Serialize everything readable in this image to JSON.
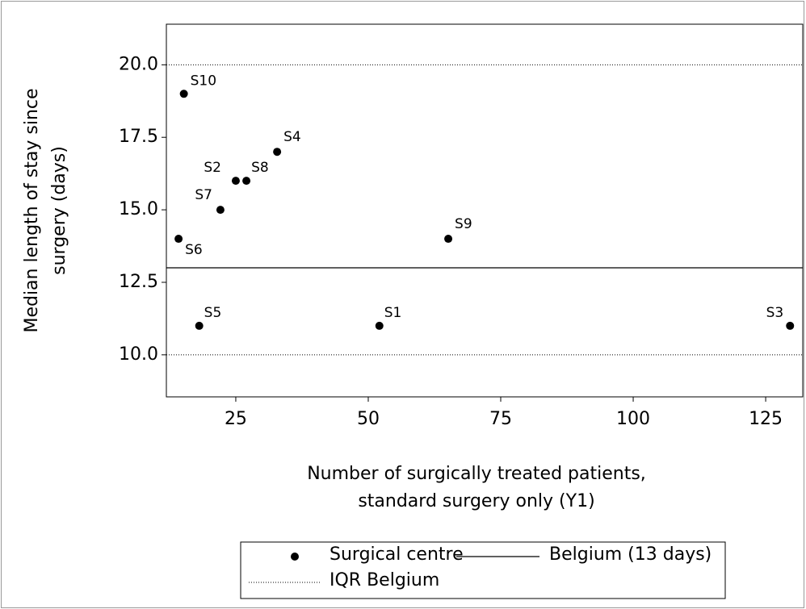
{
  "chart_data": {
    "type": "scatter",
    "xlabel": [
      "Number of surgically treated patients,",
      "standard surgery only (Y1)"
    ],
    "ylabel": [
      "Median length of stay since",
      "surgery (days)"
    ],
    "series": [
      {
        "name": "Surgical centre",
        "color": "#000000",
        "labels": [
          "S6",
          "S10",
          "S5",
          "S7",
          "S2",
          "S8",
          "S4",
          "S1",
          "S9",
          "S3"
        ],
        "x": [
          14.2,
          15.2,
          18.1,
          22.1,
          25,
          27,
          32.8,
          52.1,
          65.1,
          129.6
        ],
        "values": [
          14,
          19,
          11,
          15,
          16,
          16,
          17,
          11,
          14,
          11
        ]
      }
    ],
    "reference_lines": [
      {
        "name": "Belgium (13 days)",
        "values": [
          13
        ],
        "style": "solid"
      },
      {
        "name": "IQR Belgium",
        "values": [
          10,
          20
        ],
        "style": "dotted"
      }
    ],
    "xlim": [
      11.9,
      132
    ],
    "xticks": [
      25,
      50,
      75,
      100,
      125
    ],
    "ylim": [
      8.55,
      21.4
    ],
    "yticks": [
      {
        "value": 10,
        "label": "10.0"
      },
      12.5,
      {
        "value": 15,
        "label": "15.0"
      },
      17.5,
      {
        "value": 20,
        "label": "20.0"
      }
    ]
  }
}
